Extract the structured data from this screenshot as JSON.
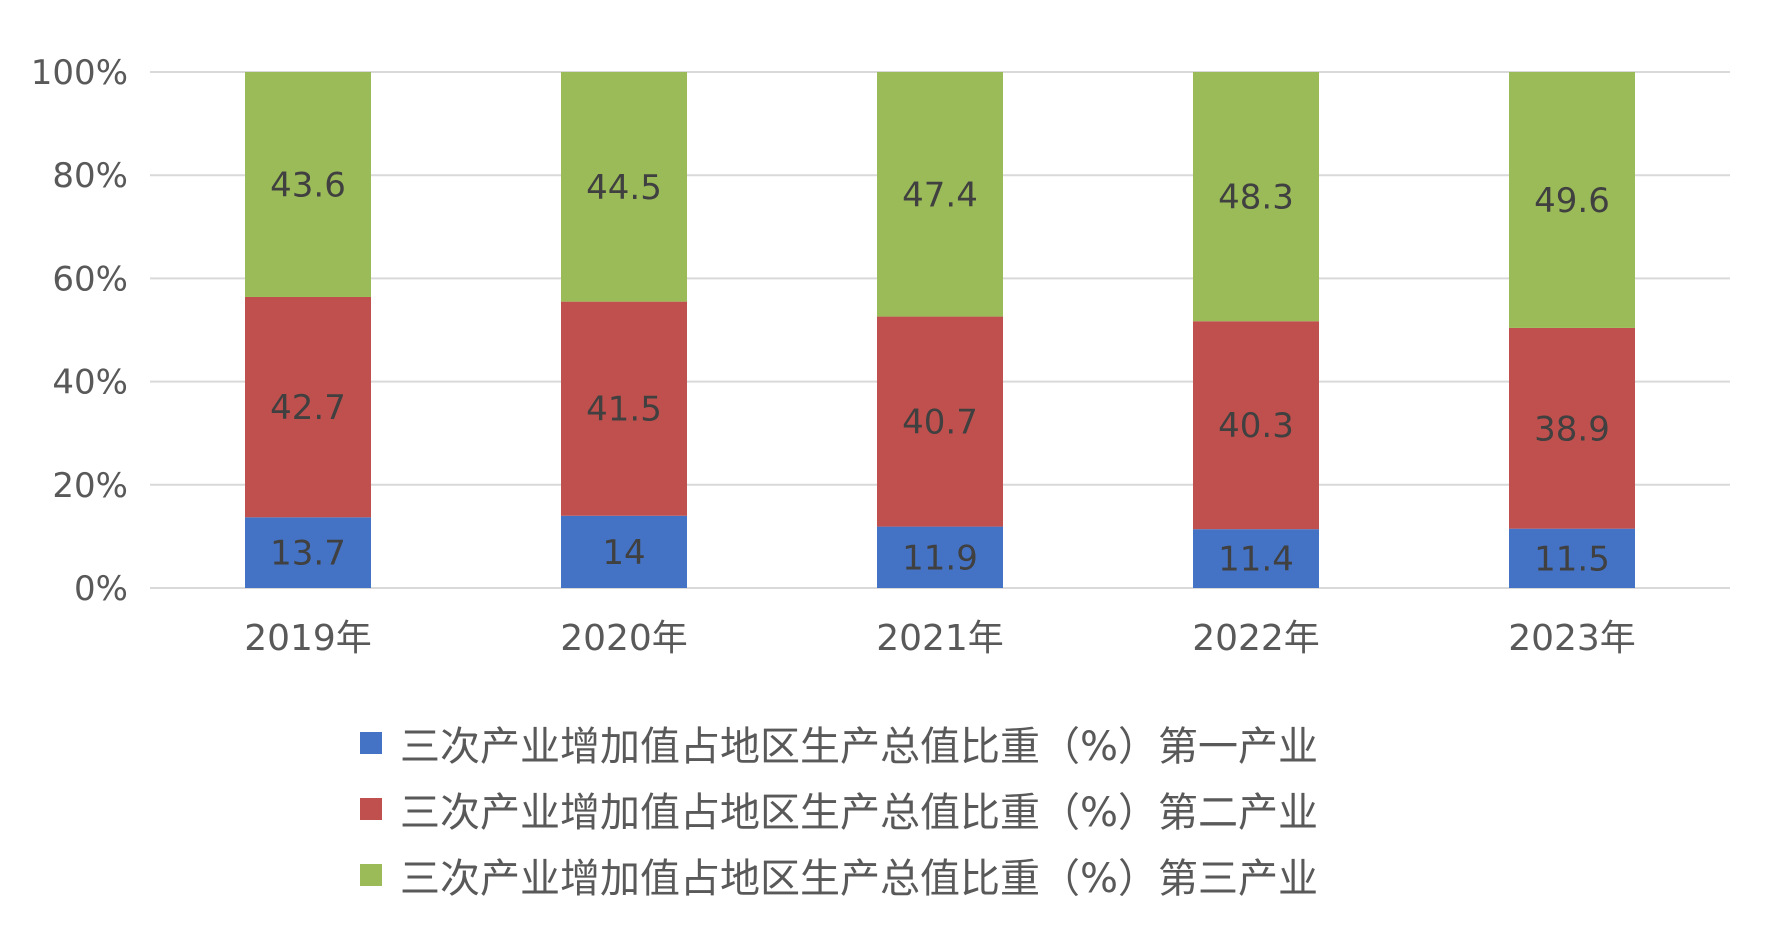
{
  "chart_data": {
    "type": "bar",
    "stacked": true,
    "percent_stacked": true,
    "categories": [
      "2019年",
      "2020年",
      "2021年",
      "2022年",
      "2023年"
    ],
    "series": [
      {
        "name": "三次产业增加值占地区生产总值比重（%）第一产业",
        "color": "#4472c4",
        "values": [
          13.7,
          14,
          11.9,
          11.4,
          11.5
        ],
        "labels": [
          "13.7",
          "14",
          "11.9",
          "11.4",
          "11.5"
        ]
      },
      {
        "name": "三次产业增加值占地区生产总值比重（%）第二产业",
        "color": "#c0504d",
        "values": [
          42.7,
          41.5,
          40.7,
          40.3,
          38.9
        ],
        "labels": [
          "42.7",
          "41.5",
          "40.7",
          "40.3",
          "38.9"
        ]
      },
      {
        "name": "三次产业增加值占地区生产总值比重（%）第三产业",
        "color": "#9bbb59",
        "values": [
          43.6,
          44.5,
          47.4,
          48.3,
          49.6
        ],
        "labels": [
          "43.6",
          "44.5",
          "47.4",
          "48.3",
          "49.6"
        ]
      }
    ],
    "y_ticks": [
      "0%",
      "20%",
      "40%",
      "60%",
      "80%",
      "100%"
    ],
    "ylim": [
      0,
      100
    ],
    "grid": true,
    "legend_position": "bottom"
  }
}
